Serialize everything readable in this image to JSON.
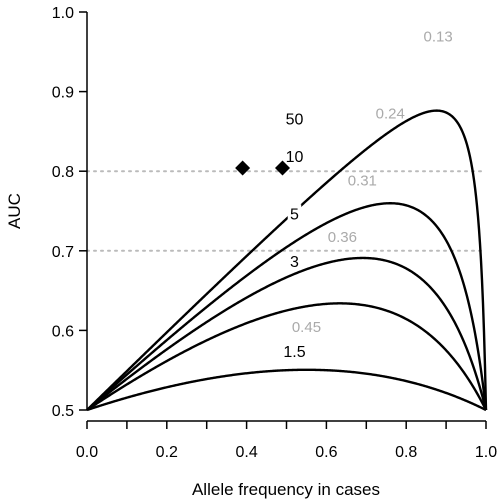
{
  "chart_data": {
    "type": "line",
    "xlabel": "Allele frequency in cases",
    "ylabel": "AUC",
    "xlim": [
      0.0,
      1.0
    ],
    "ylim": [
      0.5,
      1.0
    ],
    "x_ticks": [
      0.0,
      0.1,
      0.2,
      0.3,
      0.4,
      0.5,
      0.6,
      0.7,
      0.8,
      0.9,
      1.0
    ],
    "x_tick_labels": [
      "0.0",
      "0.2",
      "0.4",
      "0.6",
      "0.8",
      "1.0"
    ],
    "x_tick_label_values": [
      0.0,
      0.2,
      0.4,
      0.6,
      0.8,
      1.0
    ],
    "y_ticks": [
      0.5,
      0.6,
      0.7,
      0.8,
      0.9,
      1.0
    ],
    "y_tick_labels": [
      "0.5",
      "0.6",
      "0.7",
      "0.8",
      "0.9",
      "1.0"
    ],
    "reference_lines": [
      0.7,
      0.8
    ],
    "series": [
      {
        "name": "50",
        "odds_ratio": 50,
        "label_position": [
          0.52,
          0.866
        ],
        "peak": {
          "label": "0.13",
          "position": [
            0.88,
            0.963
          ]
        }
      },
      {
        "name": "10",
        "odds_ratio": 10,
        "label_position": [
          0.52,
          0.819
        ],
        "peak": {
          "label": "0.24",
          "position": [
            0.76,
            0.866
          ]
        }
      },
      {
        "name": "5",
        "odds_ratio": 5,
        "label_position": [
          0.52,
          0.747
        ],
        "peak": {
          "label": "0.31",
          "position": [
            0.69,
            0.782
          ]
        }
      },
      {
        "name": "3",
        "odds_ratio": 3,
        "label_position": [
          0.52,
          0.687
        ],
        "peak": {
          "label": "0.36",
          "position": [
            0.64,
            0.711
          ]
        }
      },
      {
        "name": "1.5",
        "odds_ratio": 1.5,
        "label_position": [
          0.52,
          0.574
        ],
        "peak": {
          "label": "0.45",
          "position": [
            0.55,
            0.598
          ]
        }
      }
    ],
    "markers": [
      {
        "shape": "diamond",
        "x": 0.39,
        "y": 0.804
      },
      {
        "shape": "diamond",
        "x": 0.49,
        "y": 0.804
      }
    ],
    "colors": {
      "curve": "#000000",
      "peak_label": "#aaaaaa",
      "reference_line": "#bbbbbb"
    }
  }
}
